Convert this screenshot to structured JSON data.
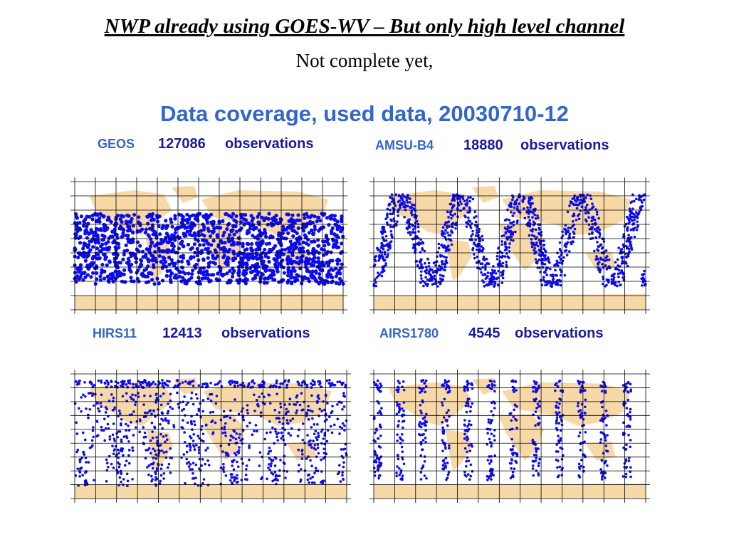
{
  "header": {
    "title": "NWP already using GOES-WV – But only high level channel",
    "subtitle": "Not complete yet,"
  },
  "figure": {
    "title": "Data coverage, used data, 20030710-12",
    "panels": [
      {
        "name": "GEOS",
        "count": 127086,
        "unit": "observations"
      },
      {
        "name": "AMSU-B4",
        "count": 18880,
        "unit": "observations"
      },
      {
        "name": "HIRS11",
        "count": 12413,
        "unit": "observations"
      },
      {
        "name": "AIRS1780",
        "count": 4545,
        "unit": "observations"
      }
    ]
  }
}
